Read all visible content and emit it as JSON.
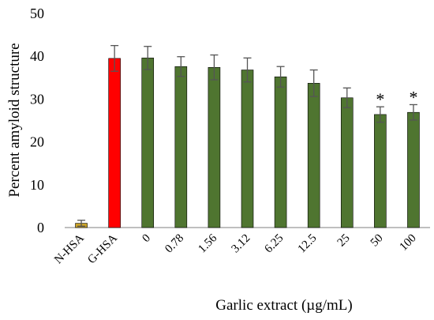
{
  "chart_data": {
    "type": "bar",
    "title": "",
    "xlabel": "Garlic extract (µg/mL)",
    "ylabel": "Percent amyloid structure",
    "ylim": [
      0,
      50
    ],
    "yticks": [
      "0",
      "10",
      "20",
      "30",
      "40",
      "50"
    ],
    "grid": false,
    "legend": "none",
    "categories": [
      "N-HSA",
      "G-HSA",
      "0",
      "0.78",
      "1.56",
      "3.12",
      "6.25",
      "12.5",
      "25",
      "50",
      "100"
    ],
    "values": [
      1.0,
      39.5,
      39.6,
      37.6,
      37.4,
      36.8,
      35.2,
      33.7,
      30.3,
      26.4,
      26.9
    ],
    "errors": [
      0.7,
      3.0,
      2.7,
      2.3,
      2.9,
      2.8,
      2.4,
      3.1,
      2.3,
      1.8,
      1.8
    ],
    "annotations": [
      "",
      "",
      "",
      "",
      "",
      "",
      "",
      "",
      "",
      "*",
      "*"
    ],
    "colors": [
      "#c9a227",
      "#ff0000",
      "#4f7530",
      "#4f7530",
      "#4f7530",
      "#4f7530",
      "#4f7530",
      "#4f7530",
      "#4f7530",
      "#4f7530",
      "#4f7530"
    ],
    "bar_edge_color": "#000000",
    "error_bar_color": "#555555"
  }
}
